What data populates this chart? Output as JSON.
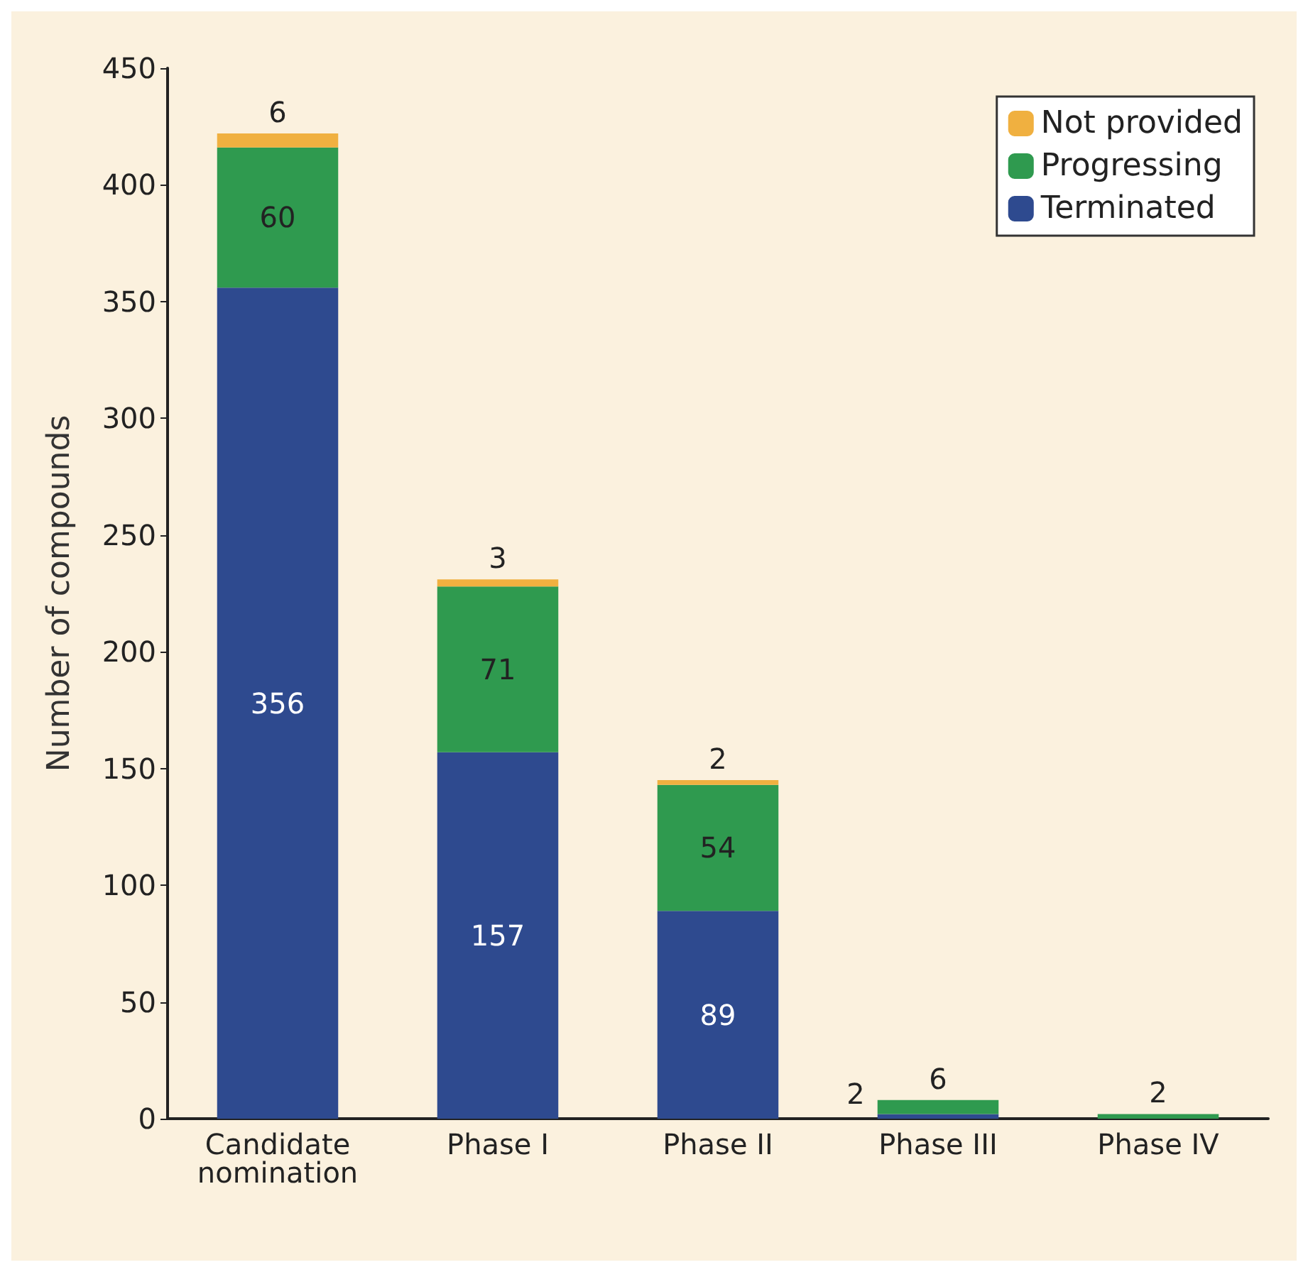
{
  "chart_data": {
    "type": "bar",
    "stacked": true,
    "ylabel": "Number of compounds",
    "categories": [
      "Candidate\nnomination",
      "Phase I",
      "Phase II",
      "Phase III",
      "Phase IV"
    ],
    "series": [
      {
        "name": "Terminated",
        "color": "#2e4a8f",
        "values": [
          356,
          157,
          89,
          2,
          0
        ],
        "value_labels": [
          "356",
          "157",
          "89",
          "2",
          null
        ]
      },
      {
        "name": "Progressing",
        "color": "#2f9a4f",
        "values": [
          60,
          71,
          54,
          6,
          2
        ],
        "value_labels": [
          "60",
          "71",
          "54",
          "6",
          "2"
        ]
      },
      {
        "name": "Not provided",
        "color": "#f0b040",
        "values": [
          6,
          3,
          2,
          0,
          0
        ],
        "value_labels": [
          "6",
          "3",
          "2",
          null,
          null
        ]
      }
    ],
    "ylim": [
      0,
      450
    ],
    "yticks": [
      0,
      50,
      100,
      150,
      200,
      250,
      300,
      350,
      400,
      450
    ],
    "grid": false,
    "legend": "top right"
  }
}
